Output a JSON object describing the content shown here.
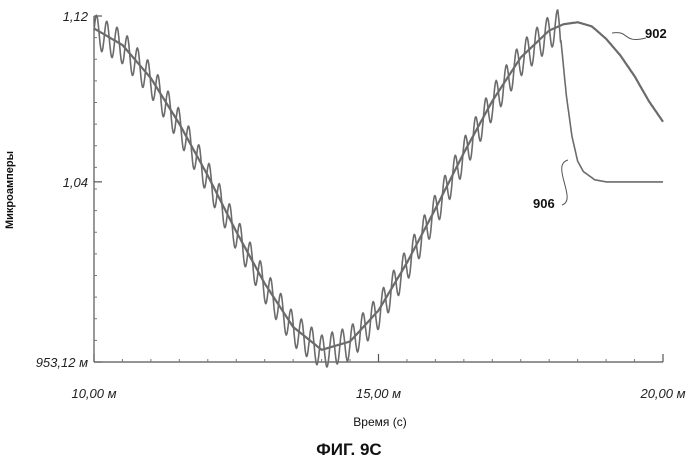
{
  "chart_data": {
    "type": "line",
    "title": "",
    "caption": "ФИГ. 9C",
    "xlabel": "Время (с)",
    "ylabel": "Микроамперы",
    "xlim": [
      10.0,
      20.0
    ],
    "ylim": [
      0.95312,
      1.12
    ],
    "x_ticks": [
      {
        "value": 10.0,
        "label": "10,00 м"
      },
      {
        "value": 15.0,
        "label": "15,00 м"
      },
      {
        "value": 20.0,
        "label": "20,00 м"
      }
    ],
    "y_ticks": [
      {
        "value": 1.12,
        "label": "1,12"
      },
      {
        "value": 1.04,
        "label": "1,04"
      },
      {
        "value": 0.95312,
        "label": "953,12 м"
      }
    ],
    "grid": false,
    "line_color": "#6b6b6b",
    "series": [
      {
        "name": "902",
        "x": [
          10.0,
          10.5,
          11.0,
          11.5,
          12.0,
          12.5,
          13.0,
          13.5,
          14.0,
          14.5,
          15.0,
          15.5,
          16.0,
          16.5,
          17.0,
          17.5,
          18.0,
          18.25,
          18.5,
          18.75,
          19.0,
          19.25,
          19.5,
          19.75,
          20.0
        ],
        "y": [
          1.114,
          1.106,
          1.09,
          1.068,
          1.043,
          1.016,
          0.991,
          0.97,
          0.959,
          0.963,
          0.978,
          1.001,
          1.027,
          1.054,
          1.079,
          1.1,
          1.113,
          1.116,
          1.117,
          1.115,
          1.109,
          1.101,
          1.091,
          1.079,
          1.069
        ]
      },
      {
        "name": "906",
        "x": [
          10.0,
          10.5,
          11.0,
          11.5,
          12.0,
          12.5,
          13.0,
          13.5,
          14.0,
          14.5,
          15.0,
          15.5,
          16.0,
          16.5,
          17.0,
          17.5,
          18.0,
          18.15,
          18.2,
          18.3,
          18.4,
          18.5,
          18.6,
          18.8,
          19.0,
          19.25,
          19.5,
          19.75,
          20.0
        ],
        "y": [
          1.113,
          1.105,
          1.089,
          1.067,
          1.042,
          1.015,
          0.99,
          0.969,
          0.958,
          0.962,
          0.977,
          1.0,
          1.026,
          1.053,
          1.078,
          1.099,
          1.112,
          1.115,
          1.11,
          1.082,
          1.062,
          1.05,
          1.045,
          1.041,
          1.04,
          1.04,
          1.04,
          1.04,
          1.04
        ],
        "oscillation_amplitude": 0.008,
        "oscillation_period": 0.18,
        "oscillation_end_x": 18.2
      }
    ]
  }
}
